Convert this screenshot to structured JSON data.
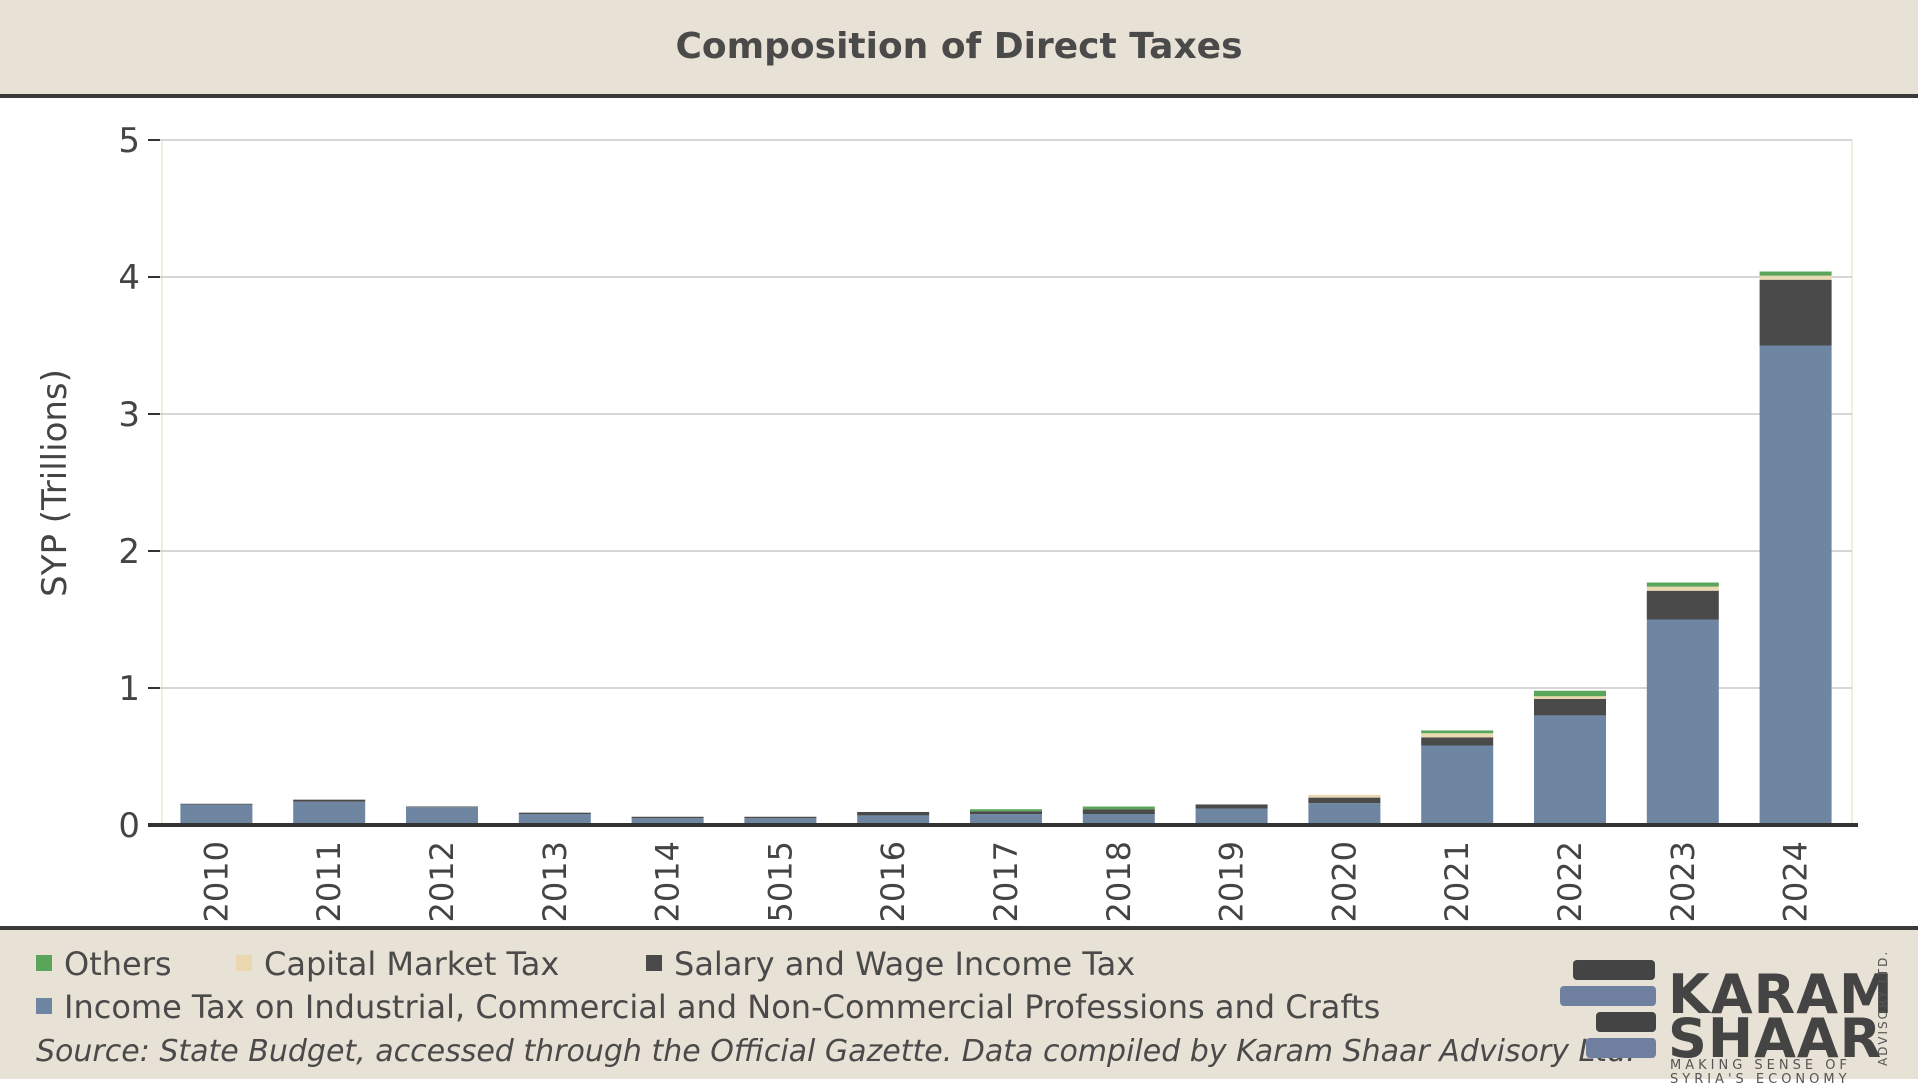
{
  "header": {
    "title": "Composition of Direct Taxes"
  },
  "chart_data": {
    "type": "bar",
    "stacked": true,
    "categories": [
      "2010",
      "2011",
      "2012",
      "2013",
      "2014",
      "5015",
      "2016",
      "2017",
      "2018",
      "2019",
      "2020",
      "2021",
      "2022",
      "2023",
      "2024"
    ],
    "ylabel": "SYP (Trillions)",
    "xlabel": "",
    "ylim": [
      0,
      5
    ],
    "yticks": [
      0,
      1,
      2,
      3,
      4,
      5
    ],
    "grid": true,
    "legend_position": "bottom",
    "series": [
      {
        "name": "Income Tax on Industrial, Commercial and Non-Commercial Professions and Crafts",
        "color": "#6f86a3",
        "values": [
          0.15,
          0.17,
          0.13,
          0.08,
          0.05,
          0.05,
          0.07,
          0.08,
          0.08,
          0.12,
          0.16,
          0.58,
          0.8,
          1.5,
          3.5
        ]
      },
      {
        "name": "Salary and Wage Income Tax",
        "color": "#4a4a4a",
        "values": [
          0.005,
          0.015,
          0.005,
          0.01,
          0.01,
          0.01,
          0.025,
          0.02,
          0.035,
          0.03,
          0.04,
          0.06,
          0.12,
          0.21,
          0.48
        ]
      },
      {
        "name": "Capital Market Tax",
        "color": "#e9d8b0",
        "values": [
          0,
          0,
          0,
          0,
          0,
          0,
          0,
          0,
          0,
          0,
          0.02,
          0.03,
          0.02,
          0.03,
          0.03
        ]
      },
      {
        "name": "Others",
        "color": "#5aa55a",
        "values": [
          0,
          0,
          0,
          0,
          0,
          0,
          0,
          0.015,
          0.02,
          0,
          0,
          0.02,
          0.04,
          0.03,
          0.03
        ]
      }
    ]
  },
  "legend": {
    "others": "Others",
    "capital": "Capital Market Tax",
    "salary": "Salary and Wage Income Tax",
    "income": "Income Tax on Industrial, Commercial and Non-Commercial Professions and Crafts"
  },
  "colors": {
    "others": "#5aa55a",
    "capital": "#e9d8b0",
    "salary": "#4a4a4a",
    "income": "#6f86a3"
  },
  "footer": {
    "source": "Source: State Budget, accessed through the Official Gazette. Data compiled by Karam Shaar Advisory Ltd."
  },
  "logo": {
    "line1": "KARAM",
    "line2": "SHAAR",
    "tag1": "MAKING SENSE OF",
    "tag2": "SYRIA'S ECONOMY",
    "side": "ADVISORY LTD."
  }
}
